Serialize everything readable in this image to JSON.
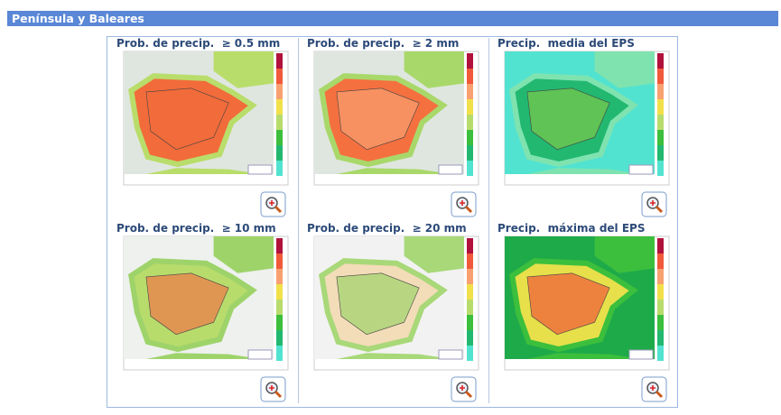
{
  "header": {
    "title": "Península y Baleares"
  },
  "panels": [
    {
      "title": "Prob. de precip.  ≥ 0.5 mm"
    },
    {
      "title": "Prob. de precip.  ≥ 2 mm"
    },
    {
      "title": "Precip.  media del EPS"
    },
    {
      "title": "Prob. de precip.  ≥ 10 mm"
    },
    {
      "title": "Prob. de precip.  ≥ 20 mm"
    },
    {
      "title": "Precip.  máxima del EPS"
    }
  ]
}
